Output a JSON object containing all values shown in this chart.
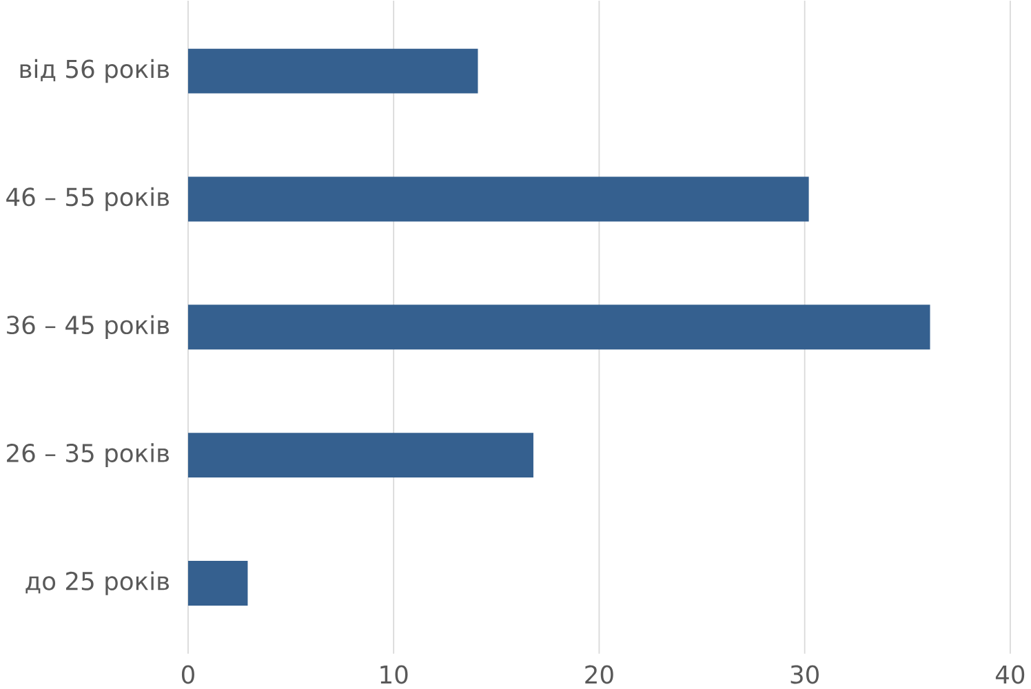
{
  "chart_data": {
    "type": "bar",
    "orientation": "horizontal",
    "categories": [
      "від 56 років",
      "46 – 55 років",
      "36 – 45 років",
      "26 – 35 років",
      "до 25 років"
    ],
    "values": [
      14.1,
      30.2,
      36.1,
      16.8,
      2.9
    ],
    "color": "#35608f",
    "xlim": [
      0,
      40
    ],
    "xticks": [
      0,
      10,
      20,
      30,
      40
    ],
    "grid": "x"
  }
}
